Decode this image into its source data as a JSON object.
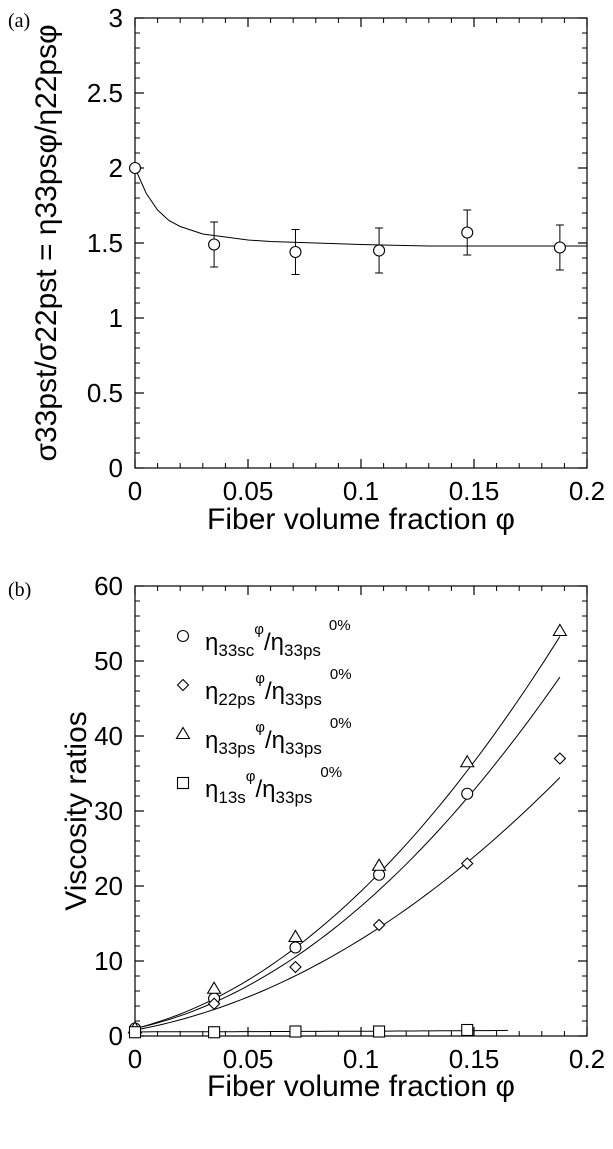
{
  "chart_data": [
    {
      "panel_label": "(a)",
      "type": "scatter",
      "xlabel": "Fiber volume fraction φ",
      "ylabel": "σ33pst/σ22pst = η33psφ/η22psφ",
      "xlim": [
        0,
        0.2
      ],
      "ylim": [
        0,
        3
      ],
      "xticks": [
        "0",
        "0.05",
        "0.1",
        "0.15",
        "0.2"
      ],
      "yticks": [
        "0",
        "0.5",
        "1",
        "1.5",
        "2",
        "2.5",
        "3"
      ],
      "grid": false,
      "series": [
        {
          "marker": "circle",
          "x": [
            0,
            0.035,
            0.071,
            0.108,
            0.147,
            0.188
          ],
          "y": [
            2.0,
            1.49,
            1.44,
            1.45,
            1.57,
            1.47
          ],
          "err": [
            0,
            0.15,
            0.15,
            0.15,
            0.15,
            0.15
          ]
        }
      ],
      "fit_curve": {
        "x": [
          0,
          0.005,
          0.01,
          0.015,
          0.02,
          0.03,
          0.04,
          0.05,
          0.06,
          0.08,
          0.1,
          0.13,
          0.148,
          0.17,
          0.2
        ],
        "y": [
          2.0,
          1.83,
          1.72,
          1.65,
          1.61,
          1.56,
          1.54,
          1.52,
          1.51,
          1.5,
          1.49,
          1.48,
          1.48,
          1.48,
          1.48
        ]
      }
    },
    {
      "panel_label": "(b)",
      "type": "scatter",
      "xlabel": "Fiber volume fraction φ",
      "ylabel": "Viscosity ratios",
      "xlim": [
        0,
        0.2
      ],
      "ylim": [
        0,
        60
      ],
      "xticks": [
        "0",
        "0.05",
        "0.1",
        "0.15",
        "0.2"
      ],
      "yticks": [
        "0",
        "10",
        "20",
        "30",
        "40",
        "50",
        "60"
      ],
      "grid": false,
      "legend_position": "top-left",
      "series": [
        {
          "legend": {
            "main": "η",
            "sub1": "33sc",
            "sup1": "φ",
            "mid": "/η",
            "sub2": "33ps",
            "sup2": "0%"
          },
          "marker": "circle",
          "x": [
            0,
            0.035,
            0.071,
            0.108,
            0.147
          ],
          "y": [
            1.0,
            5.0,
            11.8,
            21.5,
            32.3
          ]
        },
        {
          "legend": {
            "main": "η",
            "sub1": "22ps",
            "sup1": "φ",
            "mid": "/η",
            "sub2": "33ps",
            "sup2": "0%"
          },
          "marker": "diamond",
          "x": [
            0,
            0.035,
            0.071,
            0.108,
            0.147,
            0.188
          ],
          "y": [
            0.7,
            4.3,
            9.2,
            14.8,
            23.0,
            37.0
          ]
        },
        {
          "legend": {
            "main": "η",
            "sub1": "33ps",
            "sup1": "φ",
            "mid": "/η",
            "sub2": "33ps",
            "sup2": "0%"
          },
          "marker": "triangle",
          "x": [
            0,
            0.035,
            0.071,
            0.108,
            0.147,
            0.188
          ],
          "y": [
            1.0,
            6.3,
            13.2,
            22.7,
            36.5,
            54.0
          ]
        },
        {
          "legend": {
            "main": "η",
            "sub1": "13s",
            "sup1": "φ",
            "mid": "/η",
            "sub2": "33ps",
            "sup2": "0%"
          },
          "marker": "square",
          "x": [
            0,
            0.035,
            0.071,
            0.108,
            0.147
          ],
          "y": [
            0.5,
            0.5,
            0.6,
            0.6,
            0.8
          ]
        }
      ],
      "fit_curves": [
        {
          "a": 1.0,
          "b": 65.0,
          "c": 980.0,
          "xmax": 0.188
        },
        {
          "a": 0.8,
          "b": 55.0,
          "c": 660.0,
          "xmax": 0.188
        },
        {
          "a": 1.0,
          "b": 75.0,
          "c": 1080.0,
          "xmax": 0.188
        },
        {
          "a": 0.55,
          "b": 0.5,
          "c": 4.0,
          "xmax": 0.165
        }
      ]
    }
  ]
}
